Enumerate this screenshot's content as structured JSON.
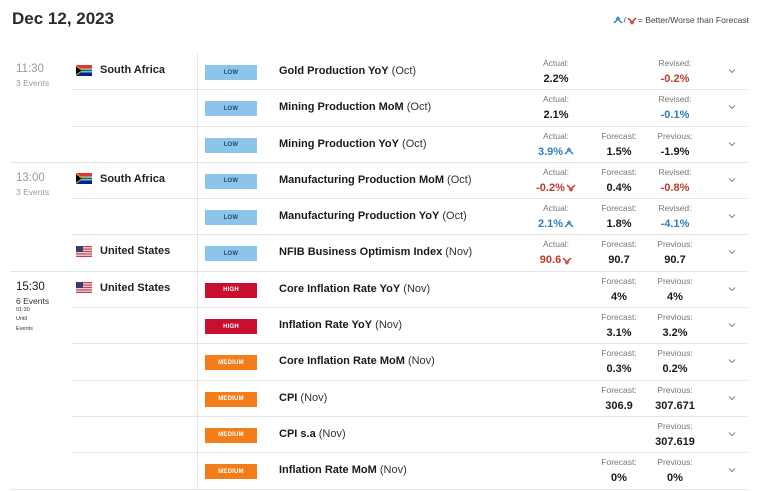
{
  "header": {
    "date": "Dec 12, 2023",
    "legend_text": "= Better/Worse than Forecast"
  },
  "groups": [
    {
      "time": "11:30",
      "events_count": "3 Events",
      "until": null,
      "rows": [
        {
          "country": "South Africa",
          "flag": "za",
          "impact": "LOW",
          "impact_class": "low",
          "name": "Gold Production YoY",
          "period": "(Oct)",
          "actual": {
            "label": "Actual:",
            "value": "2.2%",
            "color": "",
            "trend": ""
          },
          "forecast": null,
          "previous": {
            "label": "Revised:",
            "value": "-0.2%",
            "color": "red"
          }
        },
        {
          "country": "",
          "flag": "",
          "impact": "LOW",
          "impact_class": "low",
          "name": "Mining Production MoM",
          "period": "(Oct)",
          "actual": {
            "label": "Actual:",
            "value": "2.1%",
            "color": "",
            "trend": ""
          },
          "forecast": null,
          "previous": {
            "label": "Revised:",
            "value": "-0.1%",
            "color": "blue"
          }
        },
        {
          "country": "",
          "flag": "",
          "impact": "LOW",
          "impact_class": "low",
          "name": "Mining Production YoY",
          "period": "(Oct)",
          "actual": {
            "label": "Actual:",
            "value": "3.9%",
            "color": "blue",
            "trend": "up"
          },
          "forecast": {
            "label": "Forecast:",
            "value": "1.5%"
          },
          "previous": {
            "label": "Previous:",
            "value": "-1.9%",
            "color": ""
          }
        }
      ]
    },
    {
      "time": "13:00",
      "events_count": "3 Events",
      "until": null,
      "rows": [
        {
          "country": "South Africa",
          "flag": "za",
          "impact": "LOW",
          "impact_class": "low",
          "name": "Manufacturing Production MoM",
          "period": "(Oct)",
          "actual": {
            "label": "Actual:",
            "value": "-0.2%",
            "color": "red",
            "trend": "down"
          },
          "forecast": {
            "label": "Forecast:",
            "value": "0.4%"
          },
          "previous": {
            "label": "Revised:",
            "value": "-0.8%",
            "color": "red"
          }
        },
        {
          "country": "",
          "flag": "",
          "impact": "LOW",
          "impact_class": "low",
          "name": "Manufacturing Production YoY",
          "period": "(Oct)",
          "actual": {
            "label": "Actual:",
            "value": "2.1%",
            "color": "blue",
            "trend": "up"
          },
          "forecast": {
            "label": "Forecast:",
            "value": "1.8%"
          },
          "previous": {
            "label": "Revised:",
            "value": "-4.1%",
            "color": "blue"
          }
        },
        {
          "country": "United States",
          "flag": "us",
          "impact": "LOW",
          "impact_class": "low",
          "name": "NFIB Business Optimism Index",
          "period": "(Nov)",
          "actual": {
            "label": "Actual:",
            "value": "90.6",
            "color": "red",
            "trend": "down"
          },
          "forecast": {
            "label": "Forecast:",
            "value": "90.7"
          },
          "previous": {
            "label": "Previous:",
            "value": "90.7",
            "color": ""
          }
        }
      ]
    },
    {
      "time": "15:30",
      "events_count": "6 Events",
      "until": "01:30\nUntil\nEvents",
      "rows": [
        {
          "country": "United States",
          "flag": "us",
          "impact": "HIGH",
          "impact_class": "high",
          "name": "Core Inflation Rate YoY",
          "period": "(Nov)",
          "actual": null,
          "forecast": {
            "label": "Forecast:",
            "value": "4%"
          },
          "previous": {
            "label": "Previous:",
            "value": "4%",
            "color": ""
          }
        },
        {
          "country": "",
          "flag": "",
          "impact": "HIGH",
          "impact_class": "high",
          "name": "Inflation Rate YoY",
          "period": "(Nov)",
          "actual": null,
          "forecast": {
            "label": "Forecast:",
            "value": "3.1%"
          },
          "previous": {
            "label": "Previous:",
            "value": "3.2%",
            "color": ""
          }
        },
        {
          "country": "",
          "flag": "",
          "impact": "MEDIUM",
          "impact_class": "medium",
          "name": "Core Inflation Rate MoM",
          "period": "(Nov)",
          "actual": null,
          "forecast": {
            "label": "Forecast:",
            "value": "0.3%"
          },
          "previous": {
            "label": "Previous:",
            "value": "0.2%",
            "color": ""
          }
        },
        {
          "country": "",
          "flag": "",
          "impact": "MEDIUM",
          "impact_class": "medium",
          "name": "CPI",
          "period": "(Nov)",
          "actual": null,
          "forecast": {
            "label": "Forecast:",
            "value": "306.9"
          },
          "previous": {
            "label": "Previous:",
            "value": "307.671",
            "color": ""
          }
        },
        {
          "country": "",
          "flag": "",
          "impact": "MEDIUM",
          "impact_class": "medium",
          "name": "CPI s.a",
          "period": "(Nov)",
          "actual": null,
          "forecast": null,
          "previous": {
            "label": "Previous:",
            "value": "307.619",
            "color": ""
          }
        },
        {
          "country": "",
          "flag": "",
          "impact": "MEDIUM",
          "impact_class": "medium",
          "name": "Inflation Rate MoM",
          "period": "(Nov)",
          "actual": null,
          "forecast": {
            "label": "Forecast:",
            "value": "0%"
          },
          "previous": {
            "label": "Previous:",
            "value": "0%",
            "color": ""
          }
        }
      ]
    }
  ],
  "colors": {
    "low": "#8cc4ec",
    "high": "#c8102e",
    "medium": "#f27d1a",
    "better": "#2e7fc1",
    "worse": "#c0392b"
  }
}
